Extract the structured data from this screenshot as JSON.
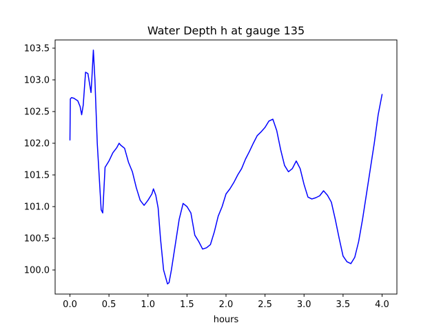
{
  "colors": {
    "series": "#0000ff",
    "axes": "#000000",
    "background": "#ffffff"
  },
  "chart_data": {
    "type": "line",
    "title": "Water Depth h at gauge 135",
    "xlabel": "hours",
    "ylabel": "",
    "xlim": [
      -0.19,
      4.19
    ],
    "ylim": [
      99.62,
      103.63
    ],
    "grid": false,
    "xticks": [
      0.0,
      0.5,
      1.0,
      1.5,
      2.0,
      2.5,
      3.0,
      3.5,
      4.0
    ],
    "xtick_labels": [
      "0.0",
      "0.5",
      "1.0",
      "1.5",
      "2.0",
      "2.5",
      "3.0",
      "3.5",
      "4.0"
    ],
    "yticks": [
      100.0,
      100.5,
      101.0,
      101.5,
      102.0,
      102.5,
      103.0,
      103.5
    ],
    "ytick_labels": [
      "100.0",
      "100.5",
      "101.0",
      "101.5",
      "102.0",
      "102.5",
      "103.0",
      "103.5"
    ],
    "series": [
      {
        "color": "#0000ff",
        "x": [
          0.0,
          0.005,
          0.02,
          0.05,
          0.1,
          0.13,
          0.15,
          0.17,
          0.2,
          0.23,
          0.27,
          0.28,
          0.3,
          0.32,
          0.35,
          0.4,
          0.42,
          0.45,
          0.5,
          0.55,
          0.6,
          0.63,
          0.65,
          0.7,
          0.75,
          0.8,
          0.85,
          0.9,
          0.95,
          1.0,
          1.05,
          1.07,
          1.1,
          1.13,
          1.16,
          1.2,
          1.25,
          1.27,
          1.3,
          1.35,
          1.4,
          1.45,
          1.5,
          1.55,
          1.6,
          1.65,
          1.7,
          1.75,
          1.8,
          1.85,
          1.9,
          1.95,
          2.0,
          2.05,
          2.1,
          2.15,
          2.2,
          2.25,
          2.3,
          2.35,
          2.4,
          2.45,
          2.5,
          2.55,
          2.6,
          2.65,
          2.7,
          2.75,
          2.8,
          2.85,
          2.9,
          2.95,
          3.0,
          3.05,
          3.1,
          3.15,
          3.2,
          3.25,
          3.3,
          3.35,
          3.4,
          3.45,
          3.5,
          3.55,
          3.6,
          3.65,
          3.7,
          3.75,
          3.8,
          3.85,
          3.9,
          3.95,
          4.0
        ],
        "y": [
          102.05,
          102.7,
          102.72,
          102.71,
          102.67,
          102.58,
          102.45,
          102.6,
          103.12,
          103.1,
          102.8,
          103.0,
          103.47,
          103.0,
          102.0,
          100.95,
          100.9,
          101.62,
          101.72,
          101.85,
          101.93,
          102.0,
          101.97,
          101.92,
          101.7,
          101.55,
          101.3,
          101.1,
          101.02,
          101.1,
          101.2,
          101.28,
          101.18,
          100.98,
          100.5,
          100.0,
          99.78,
          99.8,
          100.0,
          100.4,
          100.8,
          101.05,
          101.0,
          100.9,
          100.55,
          100.45,
          100.33,
          100.35,
          100.4,
          100.6,
          100.85,
          101.0,
          101.2,
          101.28,
          101.38,
          101.5,
          101.6,
          101.75,
          101.87,
          102.0,
          102.12,
          102.18,
          102.25,
          102.35,
          102.38,
          102.2,
          101.9,
          101.65,
          101.55,
          101.6,
          101.72,
          101.6,
          101.35,
          101.15,
          101.12,
          101.14,
          101.17,
          101.25,
          101.18,
          101.07,
          100.8,
          100.5,
          100.22,
          100.13,
          100.1,
          100.2,
          100.45,
          100.8,
          101.2,
          101.6,
          102.0,
          102.45,
          102.77
        ]
      }
    ]
  }
}
